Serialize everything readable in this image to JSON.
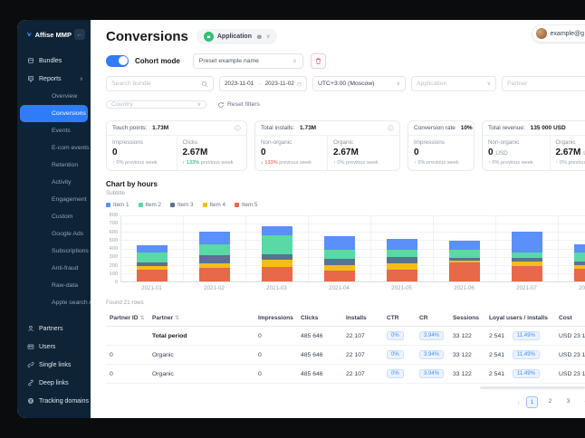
{
  "sidebar": {
    "brand": "Affise MMP",
    "collapse_arrow": "←",
    "top_items": [
      {
        "label": "Bundles"
      },
      {
        "label": "Reports",
        "chevron": "∧"
      }
    ],
    "reports_children": [
      {
        "label": "Overview"
      },
      {
        "label": "Conversions",
        "active": true
      },
      {
        "label": "Events"
      },
      {
        "label": "E-com events"
      },
      {
        "label": "Retention"
      },
      {
        "label": "Activity"
      },
      {
        "label": "Engagement"
      },
      {
        "label": "Custom"
      },
      {
        "label": "Google Ads"
      },
      {
        "label": "Subscriptions"
      },
      {
        "label": "Anti-fraud"
      },
      {
        "label": "Raw-data"
      },
      {
        "label": "Apple search Ads"
      }
    ],
    "bottom_items": [
      {
        "label": "Partners",
        "icon": "partners-icon"
      },
      {
        "label": "Users",
        "icon": "users-icon"
      },
      {
        "label": "Single links",
        "icon": "single-links-icon"
      },
      {
        "label": "Deep links",
        "icon": "deep-links-icon"
      },
      {
        "label": "Tracking domains",
        "icon": "tracking-domains-icon"
      }
    ]
  },
  "header": {
    "title": "Conversions",
    "app_selector_label": "Application",
    "user_email": "example@g"
  },
  "toolbar": {
    "cohort_toggle_label": "Cohort mode",
    "preset_value": "Preset example name"
  },
  "filters": {
    "search_placeholder": "Search bundle",
    "date_from": "2023-11-01",
    "date_arrow": "→",
    "date_to": "2023-11-02",
    "timezone": "UTC+3:00 (Moscow)",
    "application_placeholder": "Application",
    "partner_placeholder": "Partner",
    "country_placeholder": "Country",
    "reset_label": "Reset filters"
  },
  "cards": [
    {
      "title": "Touch points:",
      "title_value": "1.73M",
      "stats": [
        {
          "label": "Impressions",
          "value": "0",
          "unit": "",
          "trend_dir": "↑",
          "trend_pct": "0%",
          "trend_suffix": "previous week"
        },
        {
          "label": "Clicks",
          "value": "2.67M",
          "unit": "",
          "trend_dir": "↑",
          "trend_pct": "133%",
          "trend_suffix": "previous week"
        }
      ]
    },
    {
      "title": "Total installs:",
      "title_value": "1.73M",
      "stats": [
        {
          "label": "Non-organic",
          "value": "0",
          "unit": "",
          "trend_dir": "↓",
          "trend_pct": "133%",
          "trend_suffix": "previous week"
        },
        {
          "label": "Organic",
          "value": "2.67M",
          "unit": "",
          "trend_dir": "↑",
          "trend_pct": "0%",
          "trend_suffix": "previous week"
        }
      ]
    },
    {
      "title": "Conversion rate",
      "title_value": "10%",
      "stats": [
        {
          "label": "Impressions",
          "value": "0",
          "unit": "",
          "trend_dir": "↑",
          "trend_pct": "0%",
          "trend_suffix": "previous week"
        }
      ]
    },
    {
      "title": "Total revenue:",
      "title_value": "135 000 USD",
      "stats": [
        {
          "label": "Non-organic",
          "value": "0",
          "unit": "USD",
          "trend_dir": "↑",
          "trend_pct": "0%",
          "trend_suffix": "previous week"
        },
        {
          "label": "Organic",
          "value": "2.67M",
          "unit": "USD",
          "trend_dir": "↑",
          "trend_pct": "0%",
          "trend_suffix": "previous week"
        }
      ]
    }
  ],
  "chart_data": {
    "type": "bar",
    "stacked": true,
    "title": "Chart by hours",
    "subtitle": "Subtitle",
    "categories": [
      "2021-01",
      "2021-02",
      "2021-03",
      "2021-04",
      "2021-05",
      "2021-06",
      "2021-07",
      "2021-08"
    ],
    "series": [
      {
        "name": "Item 1",
        "color": "#5B8FF9",
        "values": [
          80,
          155,
          105,
          165,
          125,
          110,
          245,
          90
        ]
      },
      {
        "name": "Item 2",
        "color": "#5AD8A6",
        "values": [
          130,
          125,
          235,
          110,
          90,
          90,
          75,
          115
        ]
      },
      {
        "name": "Item 3",
        "color": "#5D7092",
        "values": [
          35,
          105,
          65,
          70,
          75,
          35,
          35,
          40
        ]
      },
      {
        "name": "Item 4",
        "color": "#F6BD16",
        "values": [
          50,
          50,
          85,
          65,
          80,
          25,
          60,
          50
        ]
      },
      {
        "name": "Item 5",
        "color": "#E8684A",
        "values": [
          140,
          165,
          175,
          135,
          140,
          230,
          185,
          150
        ]
      }
    ],
    "stack_order": "bottom-to-top is Item 5, Item 4, Item 3, Item 2, Item 1",
    "ylim": [
      0,
      800
    ],
    "yticks": [
      "800",
      "700",
      "600",
      "500",
      "400",
      "300",
      "200",
      "100",
      "0"
    ],
    "grid": true,
    "legend_position": "top"
  },
  "table": {
    "found_label": "Found 21 rows",
    "sort_glyph": "⇅",
    "columns": [
      "Partner ID",
      "Partner",
      "Impressions",
      "Clicks",
      "Installs",
      "CTR",
      "CR",
      "Sessions",
      "Loyal users / installs",
      "Cost"
    ],
    "rows": [
      {
        "partner_id": "",
        "partner": "Total period",
        "impressions": "0",
        "clicks": "485 646",
        "installs": "22 107",
        "ctr": "0%",
        "cr": "3.94%",
        "sessions": "33 122",
        "loyal_users": "2 541",
        "loyal_pct": "11.49%",
        "cost": "USD 23 1"
      },
      {
        "partner_id": "0",
        "partner": "Organic",
        "impressions": "0",
        "clicks": "485 646",
        "installs": "22 107",
        "ctr": "0%",
        "cr": "3.94%",
        "sessions": "33 122",
        "loyal_users": "2 541",
        "loyal_pct": "11.49%",
        "cost": "USD 23 1"
      },
      {
        "partner_id": "0",
        "partner": "Organic",
        "impressions": "0",
        "clicks": "485 646",
        "installs": "22 107",
        "ctr": "0%",
        "cr": "3.94%",
        "sessions": "33 122",
        "loyal_users": "2 541",
        "loyal_pct": "11.49%",
        "cost": "USD 23 1"
      }
    ]
  },
  "pagination": {
    "prev": "‹",
    "pages": [
      "1",
      "2",
      "3",
      "4"
    ],
    "active": "1"
  },
  "glyphs": {
    "chevron_down": "∨",
    "chevron_up": "∧"
  }
}
